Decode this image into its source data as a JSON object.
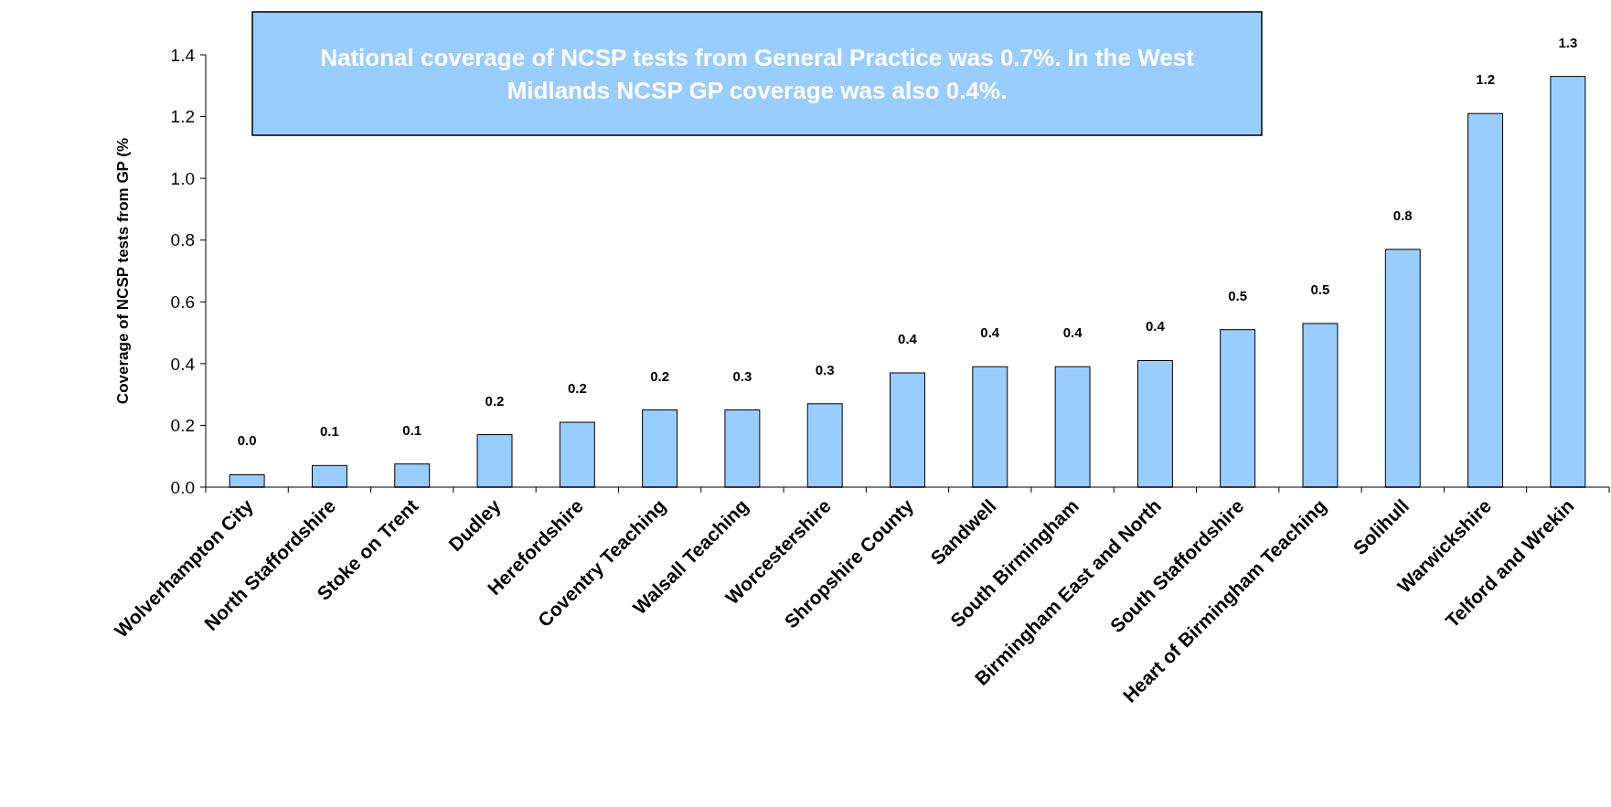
{
  "chart_data": {
    "type": "bar",
    "ylabel": "Coverage of NCSP tests from GP (%",
    "annotations": [
      "National coverage of NCSP tests from General Practice was 0.7%. In the West Midlands NCSP GP coverage was also 0.4%."
    ],
    "categories": [
      "Wolverhampton City",
      "North Staffordshire",
      "Stoke on Trent",
      "Dudley",
      "Herefordshire",
      "Coventry Teaching",
      "Walsall Teaching",
      "Worcestershire",
      "Shropshire County",
      "Sandwell",
      "South Birmingham",
      "Birmingham East and North",
      "South Staffordshire",
      "Heart of Birmingham Teaching",
      "Solihull",
      "Warwickshire",
      "Telford and Wrekin"
    ],
    "values": [
      0.04,
      0.07,
      0.075,
      0.17,
      0.21,
      0.25,
      0.25,
      0.27,
      0.37,
      0.39,
      0.39,
      0.41,
      0.51,
      0.53,
      0.77,
      1.21,
      1.33
    ],
    "value_labels": [
      "0.0",
      "0.1",
      "0.1",
      "0.2",
      "0.2",
      "0.2",
      "0.3",
      "0.3",
      "0.4",
      "0.4",
      "0.4",
      "0.4",
      "0.5",
      "0.5",
      "0.8",
      "1.2",
      "1.3"
    ],
    "color": "#99ccff",
    "ylim": [
      0,
      1.4
    ],
    "yticks": [
      {
        "value": 0,
        "label": "0.0"
      },
      {
        "value": 0.2,
        "label": "0.2"
      },
      {
        "value": 0.4,
        "label": "0.4"
      },
      {
        "value": 0.6,
        "label": "0.6"
      },
      {
        "value": 0.8,
        "label": "0.8"
      },
      {
        "value": 1,
        "label": "1.0"
      },
      {
        "value": 1.2,
        "label": "1.2"
      },
      {
        "value": 1.4,
        "label": "1.4"
      }
    ],
    "grid": false
  }
}
